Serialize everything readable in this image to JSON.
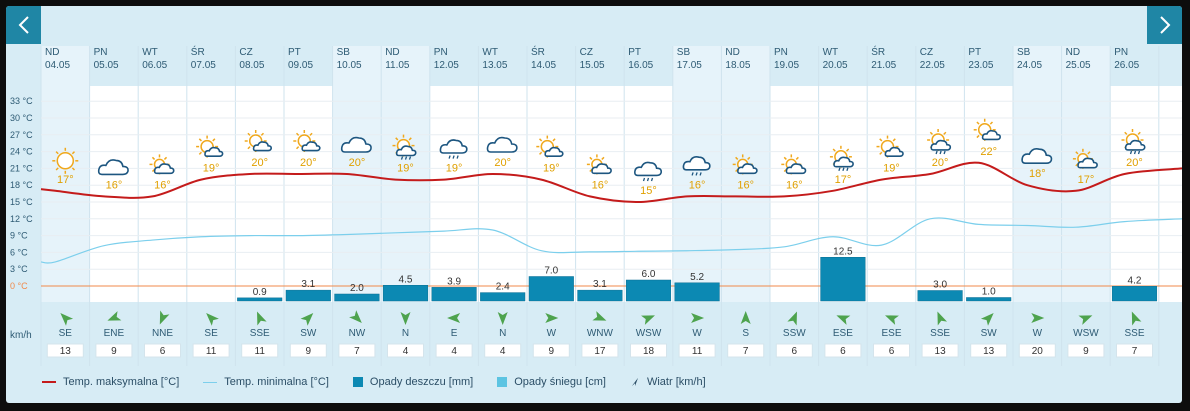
{
  "nav": {
    "prev_icon": "chevron-left-icon",
    "next_icon": "chevron-right-icon"
  },
  "y_axis_labels": [
    "33 °C",
    "30 °C",
    "27 °C",
    "24 °C",
    "21 °C",
    "18 °C",
    "15 °C",
    "12 °C",
    "9 °C",
    "6 °C",
    "3 °C",
    "0 °C"
  ],
  "wind_unit": "km/h",
  "days": [
    {
      "name": "ND",
      "date": "04.05",
      "icon": "sun-icon",
      "max": 17,
      "min": 4.3,
      "rain": null,
      "rain_label": "",
      "wind_dir": "SE",
      "wind": "13"
    },
    {
      "name": "PN",
      "date": "05.05",
      "icon": "cloud-icon",
      "max": 16,
      "min": 7.2,
      "rain": null,
      "rain_label": "",
      "wind_dir": "ENE",
      "wind": "9"
    },
    {
      "name": "WT",
      "date": "06.05",
      "icon": "partly-cloudy-icon",
      "max": 16,
      "min": 8.2,
      "rain": null,
      "rain_label": "",
      "wind_dir": "NNE",
      "wind": "6"
    },
    {
      "name": "ŚR",
      "date": "07.05",
      "icon": "partly-sunny-icon",
      "max": 19,
      "min": 8.8,
      "rain": null,
      "rain_label": "",
      "wind_dir": "SE",
      "wind": "11"
    },
    {
      "name": "CZ",
      "date": "08.05",
      "icon": "partly-sunny-icon",
      "max": 20,
      "min": 9,
      "rain": 0.9,
      "rain_label": "0.9",
      "wind_dir": "SSE",
      "wind": "11"
    },
    {
      "name": "PT",
      "date": "09.05",
      "icon": "partly-sunny-icon",
      "max": 20,
      "min": 9,
      "rain": 3.1,
      "rain_label": "3.1",
      "wind_dir": "SW",
      "wind": "9"
    },
    {
      "name": "SB",
      "date": "10.05",
      "icon": "cloud-icon",
      "max": 20,
      "min": 9.2,
      "rain": 2.0,
      "rain_label": "2.0",
      "wind_dir": "NW",
      "wind": "7"
    },
    {
      "name": "ND",
      "date": "11.05",
      "icon": "sun-rain-icon",
      "max": 19,
      "min": 9.5,
      "rain": 4.5,
      "rain_label": "4.5",
      "wind_dir": "N",
      "wind": "4"
    },
    {
      "name": "PN",
      "date": "12.05",
      "icon": "cloud-rain-icon",
      "max": 19,
      "min": 9.8,
      "rain": 3.9,
      "rain_label": "3.9",
      "wind_dir": "E",
      "wind": "4"
    },
    {
      "name": "WT",
      "date": "13.05",
      "icon": "cloud-icon",
      "max": 20,
      "min": 10,
      "rain": 2.4,
      "rain_label": "2.4",
      "wind_dir": "N",
      "wind": "4"
    },
    {
      "name": "ŚR",
      "date": "14.05",
      "icon": "partly-sunny-icon",
      "max": 19,
      "min": 6.3,
      "rain": 7.0,
      "rain_label": "7.0",
      "wind_dir": "W",
      "wind": "9"
    },
    {
      "name": "CZ",
      "date": "15.05",
      "icon": "partly-cloudy-icon",
      "max": 16,
      "min": 6.1,
      "rain": 3.1,
      "rain_label": "3.1",
      "wind_dir": "WNW",
      "wind": "17"
    },
    {
      "name": "PT",
      "date": "16.05",
      "icon": "cloud-rain-icon",
      "max": 15,
      "min": 6.2,
      "rain": 6.0,
      "rain_label": "6.0",
      "wind_dir": "WSW",
      "wind": "18"
    },
    {
      "name": "SB",
      "date": "17.05",
      "icon": "cloud-rain-icon",
      "max": 16,
      "min": 6.3,
      "rain": 5.2,
      "rain_label": "5.2",
      "wind_dir": "W",
      "wind": "11"
    },
    {
      "name": "ND",
      "date": "18.05",
      "icon": "partly-cloudy-icon",
      "max": 16,
      "min": 6.5,
      "rain": null,
      "rain_label": "",
      "wind_dir": "S",
      "wind": "7"
    },
    {
      "name": "PN",
      "date": "19.05",
      "icon": "partly-cloudy-icon",
      "max": 16,
      "min": 7,
      "rain": null,
      "rain_label": "",
      "wind_dir": "SSW",
      "wind": "6"
    },
    {
      "name": "WT",
      "date": "20.05",
      "icon": "sun-rain-icon",
      "max": 17,
      "min": 8.8,
      "rain": 12.5,
      "rain_label": "12.5",
      "wind_dir": "ESE",
      "wind": "6"
    },
    {
      "name": "ŚR",
      "date": "21.05",
      "icon": "partly-sunny-icon",
      "max": 19,
      "min": 7.3,
      "rain": null,
      "rain_label": "",
      "wind_dir": "ESE",
      "wind": "6"
    },
    {
      "name": "CZ",
      "date": "22.05",
      "icon": "sun-rain-icon",
      "max": 20,
      "min": 12,
      "rain": 3.0,
      "rain_label": "3.0",
      "wind_dir": "SSE",
      "wind": "13"
    },
    {
      "name": "PT",
      "date": "23.05",
      "icon": "partly-sunny-icon",
      "max": 22,
      "min": 11,
      "rain": 1.0,
      "rain_label": "1.0",
      "wind_dir": "SW",
      "wind": "13"
    },
    {
      "name": "SB",
      "date": "24.05",
      "icon": "cloud-icon",
      "max": 18,
      "min": 10.8,
      "rain": null,
      "rain_label": "",
      "wind_dir": "W",
      "wind": "20"
    },
    {
      "name": "ND",
      "date": "25.05",
      "icon": "partly-cloudy-icon",
      "max": 17,
      "min": 10.5,
      "rain": null,
      "rain_label": "",
      "wind_dir": "WSW",
      "wind": "9"
    },
    {
      "name": "PN",
      "date": "26.05",
      "icon": "sun-rain-icon",
      "max": 20,
      "min": 11.5,
      "rain": 4.2,
      "rain_label": "4.2",
      "wind_dir": "SSE",
      "wind": "7"
    }
  ],
  "legend": {
    "max_temp": "Temp. maksymalna [°C]",
    "min_temp": "Temp. minimalna [°C]",
    "rain": "Opady deszczu [mm]",
    "snow": "Opady śniegu [cm]",
    "wind": "Wiatr [km/h]"
  },
  "colors": {
    "max_line": "#c41b1b",
    "min_line": "#7ccfec",
    "rain": "#0c89b3",
    "snow": "#5cc4e2",
    "grid": "#cfe3ee",
    "zero": "#f08a4b",
    "nav": "#1f86a5"
  }
}
